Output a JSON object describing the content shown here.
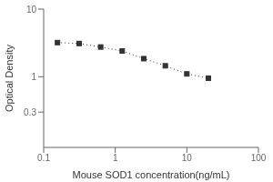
{
  "chart_data": {
    "type": "line",
    "xlabel": "Mouse SOD1 concentration(ng/mL)",
    "ylabel": "Optical Density",
    "x": [
      0.156,
      0.313,
      0.625,
      1.25,
      2.5,
      5.0,
      10.0,
      20.0
    ],
    "values": [
      3.2,
      3.1,
      2.75,
      2.4,
      1.85,
      1.45,
      1.1,
      0.95
    ],
    "xlim": [
      0.1,
      100
    ],
    "ylim": [
      0.09,
      10
    ],
    "xticks": [
      0.1,
      1,
      10,
      100
    ],
    "yticks": [
      0.3,
      1,
      10
    ],
    "log": true,
    "grid": false,
    "marker": "square",
    "line_style": "dotted",
    "color": "#333333"
  }
}
